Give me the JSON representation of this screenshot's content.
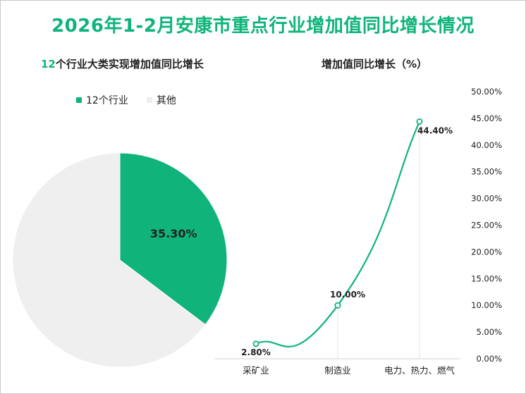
{
  "title": "2026年1-2月安康市重点行业增加值同比增长情况",
  "pie_subtitle_highlight": "12",
  "pie_subtitle_rest": "个行业大类实现增加值同比增长",
  "line_subtitle": "增加值同比增长（%）",
  "colors": {
    "green": "#10b47a",
    "grey": "#efefef",
    "text": "#222222"
  },
  "chart_data": [
    {
      "type": "pie",
      "legend": [
        "12个行业",
        "其他"
      ],
      "values": [
        35.3,
        64.7
      ],
      "data_labels": [
        "35.30%"
      ],
      "start_angle_deg": 0
    },
    {
      "type": "line",
      "title": "增加值同比增长（%）",
      "categories": [
        "采矿业",
        "制造业",
        "电力、热力、燃气"
      ],
      "values": [
        2.8,
        10.0,
        44.4
      ],
      "data_labels": [
        "2.80%",
        "10.00%",
        "44.40%"
      ],
      "ylim": [
        0,
        50
      ],
      "yticks": [
        "0.00%",
        "5.00%",
        "10.00%",
        "15.00%",
        "20.00%",
        "25.00%",
        "30.00%",
        "35.00%",
        "40.00%",
        "45.00%",
        "50.00%"
      ],
      "smooth": true
    }
  ]
}
